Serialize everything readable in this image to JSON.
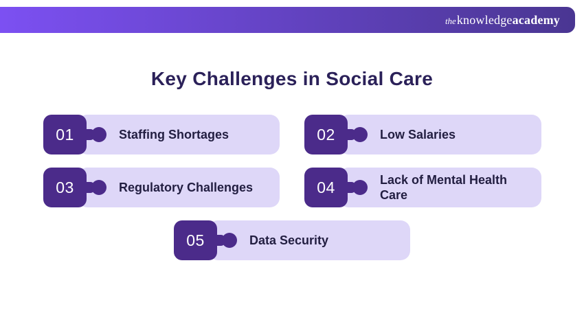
{
  "header": {
    "logo": {
      "the": "the",
      "knowledge": "knowledge",
      "academy": "academy"
    }
  },
  "title": "Key Challenges in Social Care",
  "items": [
    {
      "number": "01",
      "label": "Staffing Shortages"
    },
    {
      "number": "02",
      "label": "Low Salaries"
    },
    {
      "number": "03",
      "label": "Regulatory Challenges"
    },
    {
      "number": "04",
      "label": "Lack of Mental Health Care"
    },
    {
      "number": "05",
      "label": "Data Security"
    }
  ],
  "colors": {
    "badge": "#4b2b8a",
    "pill": "#ded7f8",
    "header_gradient_start": "#7c50f2",
    "header_gradient_end": "#4a3692",
    "title": "#2b2159"
  }
}
